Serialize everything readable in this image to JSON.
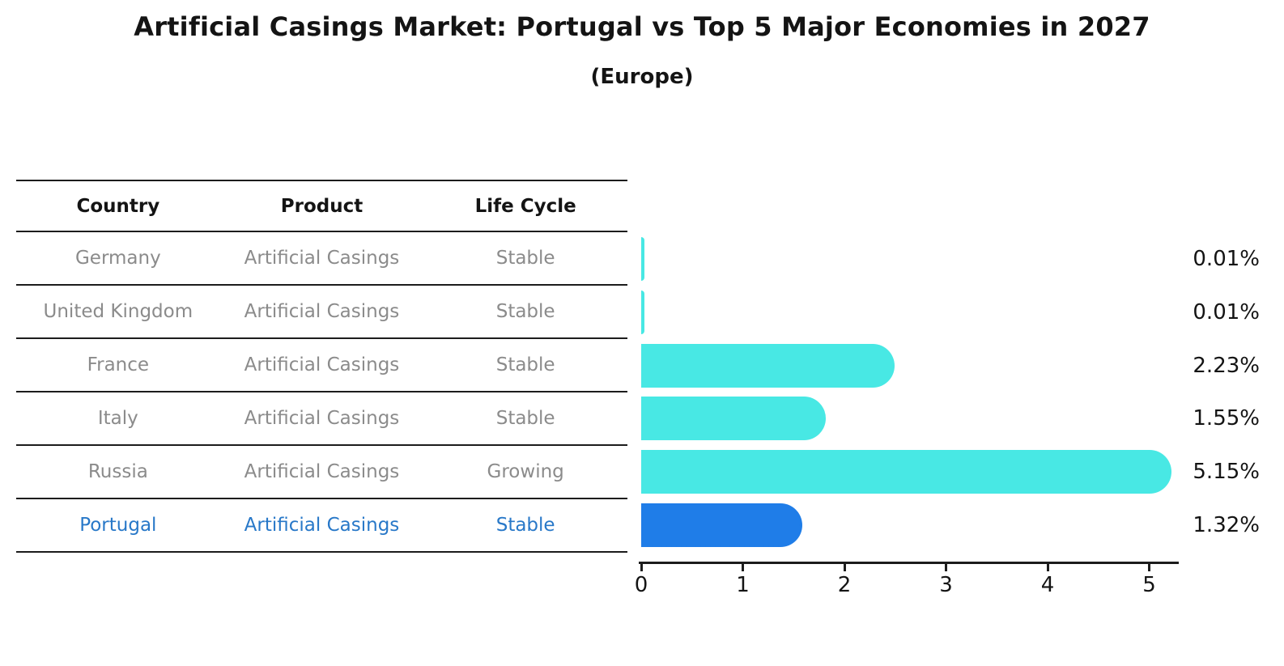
{
  "page": {
    "title": "Artificial Casings Market: Portugal vs Top 5 Major Economies in 2027",
    "subtitle": "(Europe)"
  },
  "table": {
    "headers": [
      "Country",
      "Product",
      "Life Cycle"
    ],
    "rows": [
      {
        "country": "Germany",
        "product": "Artificial Casings",
        "life_cycle": "Stable",
        "highlight": false
      },
      {
        "country": "United Kingdom",
        "product": "Artificial Casings",
        "life_cycle": "Stable",
        "highlight": false
      },
      {
        "country": "France",
        "product": "Artificial Casings",
        "life_cycle": "Stable",
        "highlight": false
      },
      {
        "country": "Italy",
        "product": "Artificial Casings",
        "life_cycle": "Stable",
        "highlight": false
      },
      {
        "country": "Russia",
        "product": "Artificial Casings",
        "life_cycle": "Growing",
        "highlight": false
      },
      {
        "country": "Portugal",
        "product": "Artificial Casings",
        "life_cycle": "Stable",
        "highlight": true
      }
    ]
  },
  "chart_data": {
    "type": "bar",
    "orientation": "horizontal",
    "title": "Artificial Casings Market: Portugal vs Top 5 Major Economies in 2027",
    "subtitle": "(Europe)",
    "categories": [
      "Germany",
      "United Kingdom",
      "France",
      "Italy",
      "Russia",
      "Portugal"
    ],
    "values": [
      0.01,
      0.01,
      2.23,
      1.55,
      5.15,
      1.32
    ],
    "value_labels": [
      "0.01%",
      "0.01%",
      "2.23%",
      "1.55%",
      "5.15%",
      "1.32%"
    ],
    "x_ticks": [
      "0",
      "1",
      "2",
      "3",
      "4",
      "5"
    ],
    "xlim": [
      0,
      5.3
    ],
    "xlabel": "",
    "ylabel": "",
    "grid": false,
    "legend": "none",
    "bar_color": "#48e8e4",
    "highlight_color": "#1f7de8",
    "highlight_border_color": "#1f7de8",
    "highlight_index": 5,
    "axis_color": "#1c1c1c",
    "label_color": "#141414",
    "muted_text_color": "#8b8b8b",
    "highlight_text_color": "#2878c8"
  }
}
